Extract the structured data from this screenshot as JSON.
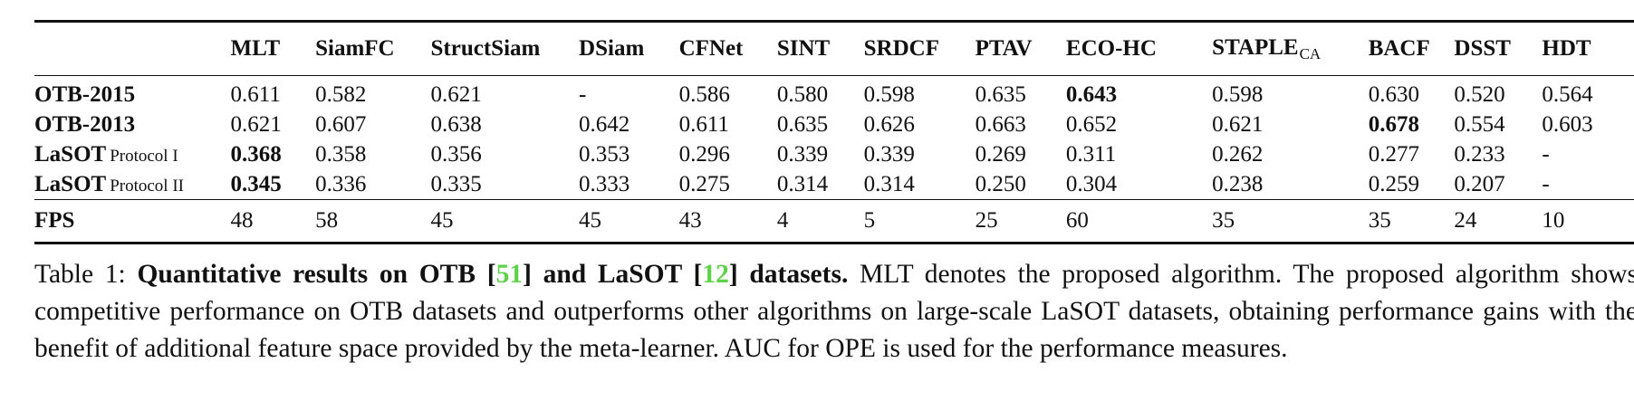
{
  "table": {
    "columns": [
      "MLT",
      "SiamFC",
      "StructSiam",
      "DSiam",
      "CFNet",
      "SINT",
      "SRDCF",
      "PTAV",
      "ECO-HC",
      "STAPLE",
      "BACF",
      "DSST",
      "HDT"
    ],
    "staple_subscript": "CA",
    "rows": [
      {
        "label": "OTB-2015",
        "protocol": "",
        "values": [
          "0.611",
          "0.582",
          "0.621",
          "-",
          "0.586",
          "0.580",
          "0.598",
          "0.635",
          "0.643",
          "0.598",
          "0.630",
          "0.520",
          "0.564"
        ],
        "bold_index": 8
      },
      {
        "label": "OTB-2013",
        "protocol": "",
        "values": [
          "0.621",
          "0.607",
          "0.638",
          "0.642",
          "0.611",
          "0.635",
          "0.626",
          "0.663",
          "0.652",
          "0.621",
          "0.678",
          "0.554",
          "0.603"
        ],
        "bold_index": 10
      },
      {
        "label": "LaSOT",
        "protocol": "Protocol I",
        "values": [
          "0.368",
          "0.358",
          "0.356",
          "0.353",
          "0.296",
          "0.339",
          "0.339",
          "0.269",
          "0.311",
          "0.262",
          "0.277",
          "0.233",
          "-"
        ],
        "bold_index": 0
      },
      {
        "label": "LaSOT",
        "protocol": "Protocol II",
        "values": [
          "0.345",
          "0.336",
          "0.335",
          "0.333",
          "0.275",
          "0.314",
          "0.314",
          "0.250",
          "0.304",
          "0.238",
          "0.259",
          "0.207",
          "-"
        ],
        "bold_index": 0
      }
    ],
    "fps_label": "FPS",
    "fps": [
      "48",
      "58",
      "45",
      "45",
      "43",
      "4",
      "5",
      "25",
      "60",
      "35",
      "35",
      "24",
      "10"
    ]
  },
  "caption": {
    "prefix": "Table 1: ",
    "bold_part1": "Quantitative results on OTB [",
    "cite1": "51",
    "bold_part2": "] and LaSOT [",
    "cite2": "12",
    "bold_part3": "] datasets.",
    "rest": " MLT denotes the proposed algorithm. The proposed algorithm shows competitive performance on OTB datasets and outperforms other algorithms on large-scale LaSOT datasets, obtaining performance gains with the benefit of additional feature space provided by the meta-learner. AUC for OPE is used for the performance measures."
  }
}
